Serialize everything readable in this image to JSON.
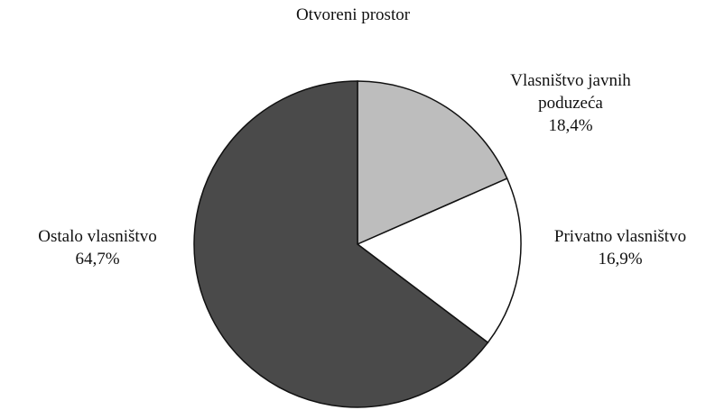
{
  "chart_data": {
    "type": "pie",
    "title": "Otvoreni prostor",
    "categories": [
      "Vlasništvo javnih poduzeća",
      "Privatno vlasništvo",
      "Ostalo vlasništvo"
    ],
    "values": [
      18.4,
      16.9,
      64.7
    ],
    "value_labels": [
      "18,4%",
      "16,9%",
      "64,7%"
    ],
    "colors": [
      "#bdbdbd",
      "#ffffff",
      "#4a4a4a"
    ]
  }
}
